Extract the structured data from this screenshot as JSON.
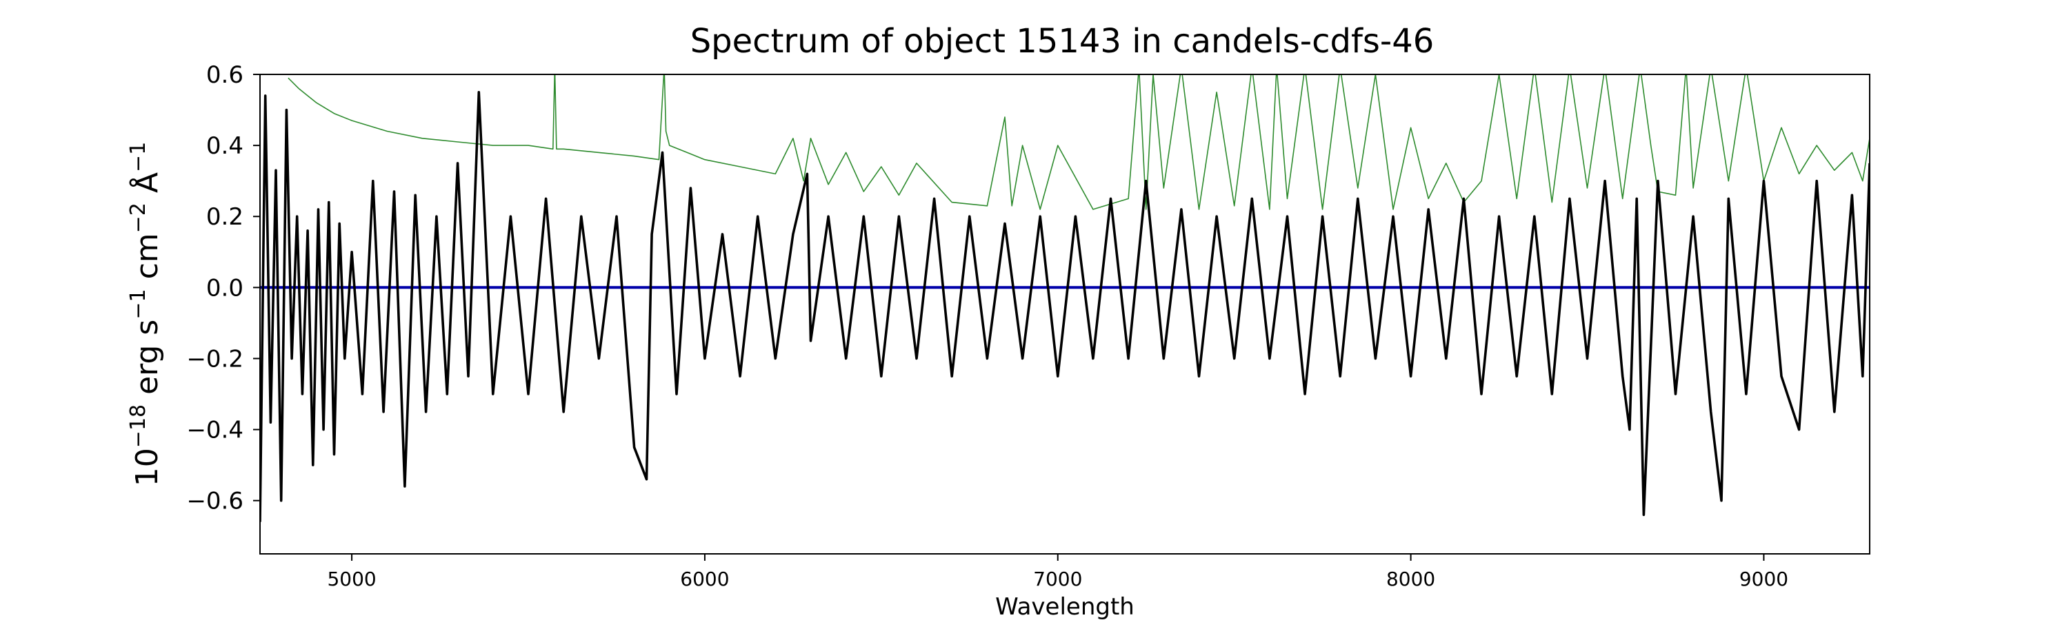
{
  "chart_data": {
    "type": "line",
    "title": "Spectrum of object 15143 in candels-cdfs-46",
    "xlabel": "Wavelength",
    "ylabel": {
      "prefix": "10",
      "exp1": "−18",
      "erg": " erg s",
      "exp2": "−1",
      "cm": " cm",
      "exp3": "−2",
      "ang": " Å",
      "exp4": "−1"
    },
    "xlim": [
      4740,
      9300
    ],
    "ylim": [
      -0.75,
      0.6
    ],
    "x_ticks": [
      5000,
      6000,
      7000,
      8000,
      9000
    ],
    "x_tick_labels": [
      "5000",
      "6000",
      "7000",
      "8000",
      "9000"
    ],
    "y_ticks": [
      -0.6,
      -0.4,
      -0.2,
      0.0,
      0.2,
      0.4,
      0.6
    ],
    "y_tick_labels": [
      "−0.6",
      "−0.4",
      "−0.2",
      "0.0",
      "0.2",
      "0.4",
      "0.6"
    ],
    "grid": false,
    "colors": {
      "flux": "#000000",
      "noise": "#2e8b2e",
      "model": "#0000aa"
    },
    "series": [
      {
        "key": "flux",
        "x": [
          4740,
          4755,
          4770,
          4785,
          4800,
          4815,
          4830,
          4845,
          4860,
          4875,
          4890,
          4905,
          4920,
          4935,
          4950,
          4965,
          4980,
          5000,
          5030,
          5060,
          5090,
          5120,
          5150,
          5180,
          5210,
          5240,
          5270,
          5300,
          5330,
          5360,
          5400,
          5450,
          5500,
          5550,
          5600,
          5650,
          5700,
          5750,
          5800,
          5835,
          5850,
          5880,
          5920,
          5960,
          6000,
          6050,
          6100,
          6150,
          6200,
          6250,
          6290,
          6300,
          6350,
          6400,
          6450,
          6500,
          6550,
          6600,
          6650,
          6700,
          6750,
          6800,
          6850,
          6900,
          6950,
          7000,
          7050,
          7100,
          7150,
          7200,
          7250,
          7300,
          7350,
          7400,
          7450,
          7500,
          7550,
          7600,
          7650,
          7700,
          7750,
          7800,
          7850,
          7900,
          7950,
          8000,
          8050,
          8100,
          8150,
          8200,
          8250,
          8300,
          8350,
          8400,
          8450,
          8500,
          8550,
          8600,
          8620,
          8640,
          8660,
          8700,
          8750,
          8800,
          8850,
          8880,
          8900,
          8950,
          9000,
          9050,
          9100,
          9150,
          9200,
          9250,
          9280,
          9300
        ],
        "y": [
          -0.66,
          0.54,
          -0.38,
          0.33,
          -0.6,
          0.5,
          -0.2,
          0.2,
          -0.3,
          0.16,
          -0.5,
          0.22,
          -0.4,
          0.24,
          -0.47,
          0.18,
          -0.2,
          0.1,
          -0.3,
          0.3,
          -0.35,
          0.27,
          -0.56,
          0.26,
          -0.35,
          0.2,
          -0.3,
          0.35,
          -0.25,
          0.55,
          -0.3,
          0.2,
          -0.3,
          0.25,
          -0.35,
          0.2,
          -0.2,
          0.2,
          -0.45,
          -0.54,
          0.15,
          0.38,
          -0.3,
          0.28,
          -0.2,
          0.15,
          -0.25,
          0.2,
          -0.2,
          0.15,
          0.32,
          -0.15,
          0.2,
          -0.2,
          0.2,
          -0.25,
          0.2,
          -0.2,
          0.25,
          -0.25,
          0.2,
          -0.2,
          0.18,
          -0.2,
          0.2,
          -0.25,
          0.2,
          -0.2,
          0.25,
          -0.2,
          0.3,
          -0.2,
          0.22,
          -0.25,
          0.2,
          -0.2,
          0.25,
          -0.2,
          0.2,
          -0.3,
          0.2,
          -0.25,
          0.25,
          -0.2,
          0.2,
          -0.25,
          0.22,
          -0.2,
          0.25,
          -0.3,
          0.2,
          -0.25,
          0.2,
          -0.3,
          0.25,
          -0.2,
          0.3,
          -0.25,
          -0.4,
          0.25,
          -0.64,
          0.3,
          -0.3,
          0.2,
          -0.35,
          -0.6,
          0.25,
          -0.3,
          0.3,
          -0.25,
          -0.4,
          0.3,
          -0.35,
          0.26,
          -0.25,
          0.35
        ]
      },
      {
        "key": "noise",
        "x": [
          4820,
          4850,
          4900,
          4950,
          5000,
          5100,
          5200,
          5300,
          5400,
          5500,
          5570,
          5575,
          5580,
          5600,
          5700,
          5800,
          5870,
          5885,
          5890,
          5900,
          5950,
          6000,
          6100,
          6200,
          6250,
          6280,
          6300,
          6350,
          6400,
          6450,
          6500,
          6550,
          6600,
          6700,
          6800,
          6850,
          6870,
          6900,
          6950,
          7000,
          7100,
          7200,
          7230,
          7250,
          7270,
          7300,
          7350,
          7400,
          7450,
          7500,
          7550,
          7600,
          7620,
          7650,
          7700,
          7750,
          7800,
          7850,
          7900,
          7950,
          8000,
          8050,
          8100,
          8150,
          8200,
          8250,
          8300,
          8350,
          8400,
          8450,
          8500,
          8550,
          8600,
          8650,
          8680,
          8700,
          8750,
          8780,
          8800,
          8850,
          8900,
          8950,
          9000,
          9050,
          9100,
          9150,
          9200,
          9250,
          9280,
          9300
        ],
        "y": [
          0.59,
          0.56,
          0.52,
          0.49,
          0.47,
          0.44,
          0.42,
          0.41,
          0.4,
          0.4,
          0.39,
          0.62,
          0.39,
          0.39,
          0.38,
          0.37,
          0.36,
          0.62,
          0.44,
          0.4,
          0.38,
          0.36,
          0.34,
          0.32,
          0.42,
          0.3,
          0.42,
          0.29,
          0.38,
          0.27,
          0.34,
          0.26,
          0.35,
          0.24,
          0.23,
          0.48,
          0.23,
          0.4,
          0.22,
          0.4,
          0.22,
          0.25,
          0.62,
          0.22,
          0.6,
          0.28,
          0.62,
          0.22,
          0.55,
          0.23,
          0.62,
          0.22,
          0.62,
          0.25,
          0.62,
          0.22,
          0.62,
          0.28,
          0.6,
          0.22,
          0.45,
          0.25,
          0.35,
          0.24,
          0.3,
          0.6,
          0.25,
          0.62,
          0.24,
          0.62,
          0.28,
          0.62,
          0.25,
          0.62,
          0.4,
          0.27,
          0.26,
          0.62,
          0.28,
          0.62,
          0.3,
          0.62,
          0.3,
          0.45,
          0.32,
          0.4,
          0.33,
          0.38,
          0.3,
          0.42
        ]
      },
      {
        "key": "model",
        "x": [
          4740,
          9300
        ],
        "y": [
          0.0,
          0.0
        ]
      }
    ]
  }
}
